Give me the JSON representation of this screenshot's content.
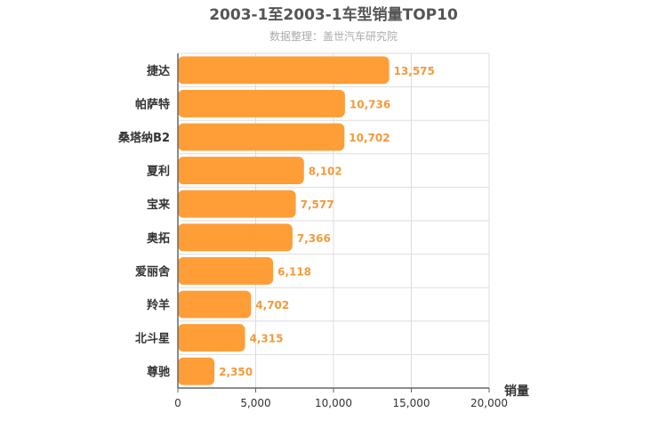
{
  "title": "2003-1至2003-1车型销量TOP10",
  "subtitle": "数据整理：盖世汽车研究院",
  "colors": {
    "bar": "#ff9d36",
    "grid": "#dddddd",
    "axis": "#666666"
  },
  "chart_data": {
    "type": "bar",
    "orientation": "horizontal",
    "categories": [
      "捷达",
      "帕萨特",
      "桑塔纳B2",
      "夏利",
      "宝来",
      "奥拓",
      "爱丽舍",
      "羚羊",
      "北斗星",
      "尊驰"
    ],
    "values": [
      13575,
      10736,
      10702,
      8102,
      7577,
      7366,
      6118,
      4702,
      4315,
      2350
    ],
    "value_labels": [
      "13,575",
      "10,736",
      "10,702",
      "8,102",
      "7,577",
      "7,366",
      "6,118",
      "4,702",
      "4,315",
      "2,350"
    ],
    "xlabel": "销量",
    "xlim": [
      0,
      20000
    ],
    "x_ticks": [
      0,
      5000,
      10000,
      15000,
      20000
    ],
    "x_tick_labels": [
      "0",
      "5,000",
      "10,000",
      "15,000",
      "20,000"
    ],
    "grid": true
  }
}
